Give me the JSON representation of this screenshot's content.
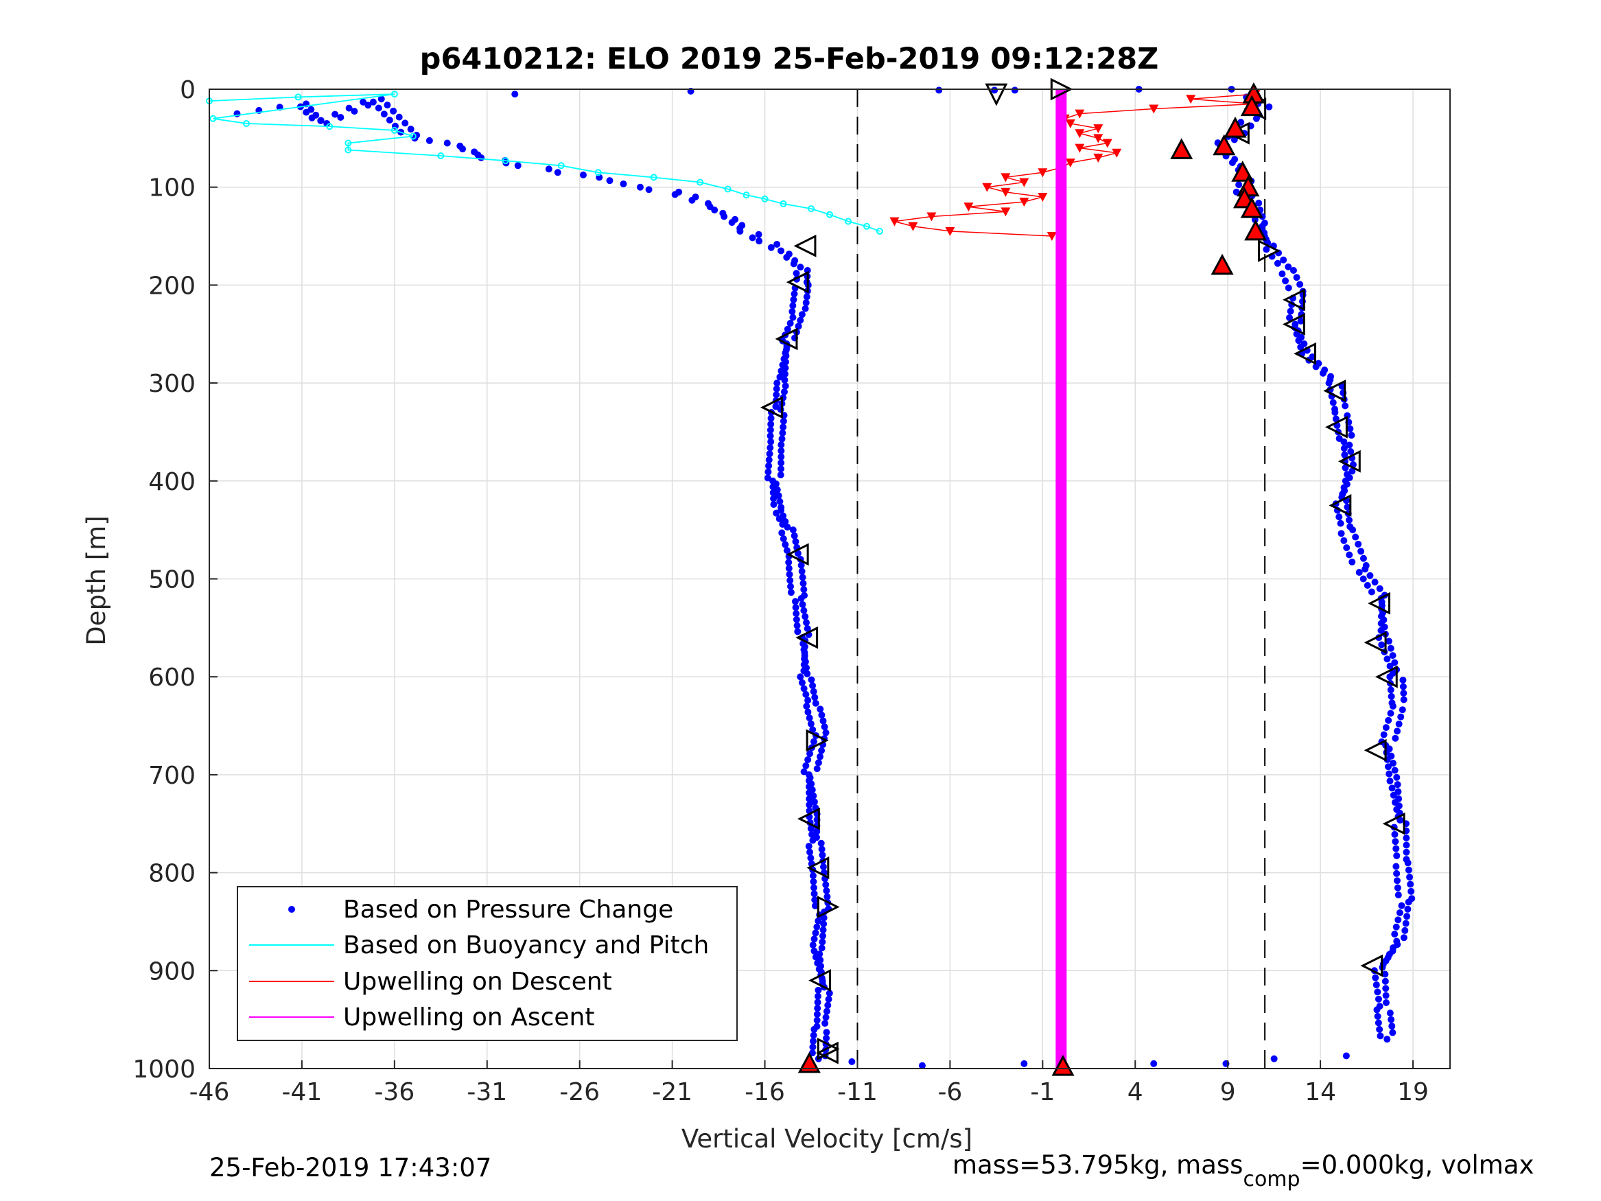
{
  "chart_data": {
    "type": "scatter",
    "title": "p6410212: ELO 2019 25-Feb-2019 09:12:28Z",
    "xlabel": "Vertical Velocity [cm/s]",
    "ylabel": "Depth [m]",
    "xlim": [
      -46,
      21
    ],
    "ylim": [
      0,
      1000
    ],
    "y_reversed": true,
    "grid": true,
    "x_ticks": [
      "-46",
      "-41",
      "-36",
      "-31",
      "-26",
      "-21",
      "-16",
      "-11",
      "-6",
      "-1",
      "4",
      "9",
      "14",
      "19"
    ],
    "y_ticks": [
      "0",
      "100",
      "200",
      "300",
      "400",
      "500",
      "600",
      "700",
      "800",
      "900",
      "1000"
    ],
    "reference_lines": [
      -11,
      11
    ],
    "legend_placement": "bottom-left",
    "legend": [
      {
        "label": "Based on Pressure Change",
        "color": "#0000ff",
        "style": "dot"
      },
      {
        "label": "Based on Buoyancy and Pitch",
        "color": "#00ffff",
        "style": "line"
      },
      {
        "label": "Upwelling on Descent",
        "color": "#ff0000",
        "style": "line"
      },
      {
        "label": "Upwelling on Ascent",
        "color": "#ff00ff",
        "style": "line"
      }
    ],
    "series": [
      {
        "name": "Based on Pressure Change",
        "color": "#0000ff",
        "descent": [
          [
            -44.5,
            25
          ],
          [
            -41,
            15
          ],
          [
            -40,
            35
          ],
          [
            -37,
            10
          ],
          [
            -35,
            50
          ],
          [
            -33,
            55
          ],
          [
            -31,
            70
          ],
          [
            -29,
            78
          ],
          [
            -27,
            85
          ],
          [
            -25,
            90
          ],
          [
            -23,
            100
          ],
          [
            -21,
            105
          ],
          [
            -20,
            110
          ],
          [
            -19,
            120
          ],
          [
            -18,
            130
          ],
          [
            -17,
            145
          ],
          [
            -16,
            155
          ],
          [
            -15,
            165
          ],
          [
            -14.5,
            175
          ],
          [
            -14,
            185
          ],
          [
            -14,
            200
          ],
          [
            -14.2,
            230
          ],
          [
            -14.8,
            260
          ],
          [
            -15.1,
            300
          ],
          [
            -15.3,
            330
          ],
          [
            -15.4,
            360
          ],
          [
            -15.5,
            400
          ],
          [
            -15.3,
            430
          ],
          [
            -14.8,
            450
          ],
          [
            -14.4,
            480
          ],
          [
            -14.2,
            520
          ],
          [
            -13.9,
            560
          ],
          [
            -13.8,
            600
          ],
          [
            -13.4,
            630
          ],
          [
            -13,
            660
          ],
          [
            -13.6,
            700
          ],
          [
            -13.4,
            740
          ],
          [
            -13.3,
            770
          ],
          [
            -13.1,
            800
          ],
          [
            -12.9,
            840
          ],
          [
            -13.2,
            880
          ],
          [
            -12.8,
            920
          ],
          [
            -13,
            960
          ],
          [
            -13.1,
            990
          ]
        ],
        "ascent": [
          [
            10,
            8
          ],
          [
            11,
            18
          ],
          [
            10.2,
            30
          ],
          [
            9.6,
            45
          ],
          [
            8.5,
            58
          ],
          [
            9.4,
            75
          ],
          [
            10,
            90
          ],
          [
            9.8,
            105
          ],
          [
            10.5,
            120
          ],
          [
            10.8,
            140
          ],
          [
            11.2,
            160
          ],
          [
            12.2,
            185
          ],
          [
            12.8,
            210
          ],
          [
            12.6,
            240
          ],
          [
            13.2,
            270
          ],
          [
            14.8,
            300
          ],
          [
            15.1,
            330
          ],
          [
            15.4,
            360
          ],
          [
            15.6,
            390
          ],
          [
            15.1,
            420
          ],
          [
            15.4,
            450
          ],
          [
            16.2,
            490
          ],
          [
            17.3,
            520
          ],
          [
            17.4,
            560
          ],
          [
            18.1,
            600
          ],
          [
            18.2,
            630
          ],
          [
            17.6,
            670
          ],
          [
            18,
            710
          ],
          [
            18.3,
            750
          ],
          [
            18.4,
            790
          ],
          [
            18.6,
            830
          ],
          [
            18.2,
            870
          ],
          [
            17.2,
            900
          ],
          [
            17.4,
            940
          ],
          [
            17.6,
            970
          ]
        ],
        "surface": [
          [
            -29.5,
            5
          ],
          [
            -20,
            2
          ],
          [
            -6.6,
            1
          ],
          [
            -3.6,
            1
          ],
          [
            -2.5,
            1
          ],
          [
            4.2,
            0
          ],
          [
            9.2,
            0
          ],
          [
            5,
            995
          ],
          [
            8.9,
            995
          ],
          [
            11.5,
            990
          ],
          [
            15.4,
            987
          ],
          [
            -2,
            995
          ],
          [
            -7.5,
            997
          ],
          [
            -11.3,
            993
          ]
        ]
      },
      {
        "name": "Based on Buoyancy and Pitch",
        "color": "#00ffff",
        "points": [
          [
            -46,
            12
          ],
          [
            -41.2,
            8
          ],
          [
            -36,
            5
          ],
          [
            -45.8,
            30
          ],
          [
            -44,
            35
          ],
          [
            -39.5,
            38
          ],
          [
            -36,
            42
          ],
          [
            -35,
            48
          ],
          [
            -38.5,
            55
          ],
          [
            -38.5,
            62
          ],
          [
            -33.5,
            68
          ],
          [
            -30,
            73
          ],
          [
            -27,
            78
          ],
          [
            -25,
            85
          ],
          [
            -22,
            90
          ],
          [
            -19.5,
            95
          ],
          [
            -18,
            102
          ],
          [
            -17,
            108
          ],
          [
            -16,
            112
          ],
          [
            -15,
            117
          ],
          [
            -13.5,
            122
          ],
          [
            -12.5,
            128
          ],
          [
            -11.5,
            135
          ],
          [
            -10.5,
            140
          ],
          [
            -9.8,
            145
          ]
        ]
      },
      {
        "name": "Upwelling on Descent",
        "color": "#ff0000",
        "points": [
          [
            10.5,
            5
          ],
          [
            7,
            10
          ],
          [
            10.5,
            15
          ],
          [
            5,
            20
          ],
          [
            1,
            25
          ],
          [
            0.2,
            30
          ],
          [
            0.5,
            35
          ],
          [
            2,
            40
          ],
          [
            1,
            45
          ],
          [
            2,
            50
          ],
          [
            2.5,
            55
          ],
          [
            1,
            60
          ],
          [
            3,
            65
          ],
          [
            2,
            70
          ],
          [
            0.5,
            75
          ],
          [
            0,
            80
          ],
          [
            -1,
            85
          ],
          [
            -3,
            90
          ],
          [
            -2,
            95
          ],
          [
            -4,
            100
          ],
          [
            -3,
            105
          ],
          [
            -1,
            110
          ],
          [
            -2,
            115
          ],
          [
            -5,
            120
          ],
          [
            -3,
            125
          ],
          [
            -7,
            130
          ],
          [
            -9,
            135
          ],
          [
            -8,
            140
          ],
          [
            -6,
            145
          ],
          [
            -0.5,
            150
          ]
        ]
      },
      {
        "name": "Upwelling on Ascent",
        "color": "#ff00ff",
        "points": [
          [
            0,
            0
          ],
          [
            0,
            1000
          ]
        ]
      }
    ],
    "open_markers": {
      "left": [
        [
          -13.8,
          160
        ],
        [
          -14.2,
          197
        ],
        [
          -14.8,
          255
        ],
        [
          -15.6,
          325
        ],
        [
          -14.2,
          475
        ],
        [
          -13.7,
          560
        ],
        [
          -13.6,
          745
        ],
        [
          -13.1,
          795
        ],
        [
          -13,
          910
        ],
        [
          -12.6,
          984
        ],
        [
          12.6,
          215
        ],
        [
          12.6,
          240
        ],
        [
          13.2,
          270
        ],
        [
          14.8,
          308
        ],
        [
          14.9,
          345
        ],
        [
          15.6,
          380
        ],
        [
          15.1,
          425
        ],
        [
          17.2,
          525
        ],
        [
          17,
          565
        ],
        [
          17.6,
          600
        ],
        [
          17,
          675
        ],
        [
          18,
          750
        ],
        [
          16.8,
          895
        ],
        [
          10.5,
          20
        ],
        [
          9.6,
          45
        ]
      ],
      "right": [
        [
          -13.2,
          665
        ],
        [
          -12.6,
          835
        ],
        [
          -12.6,
          980
        ],
        [
          0,
          0
        ],
        [
          11.2,
          165
        ]
      ],
      "down": [
        [
          -3.5,
          5
        ]
      ]
    },
    "filled_markers": [
      [
        10.4,
        5
      ],
      [
        10.3,
        18
      ],
      [
        9.4,
        40
      ],
      [
        8.8,
        58
      ],
      [
        6.5,
        62
      ],
      [
        9.8,
        85
      ],
      [
        10.1,
        100
      ],
      [
        9.9,
        112
      ],
      [
        10.3,
        122
      ],
      [
        10.5,
        145
      ],
      [
        8.7,
        180
      ],
      [
        -13.6,
        995
      ],
      [
        0.1,
        998
      ]
    ]
  },
  "footer": {
    "datetime": "25-Feb-2019 17:43:07",
    "mass_label": "mass=53.795kg, mass",
    "mass_sub": "comp",
    "mass_rest": "=0.000kg, volmax"
  }
}
